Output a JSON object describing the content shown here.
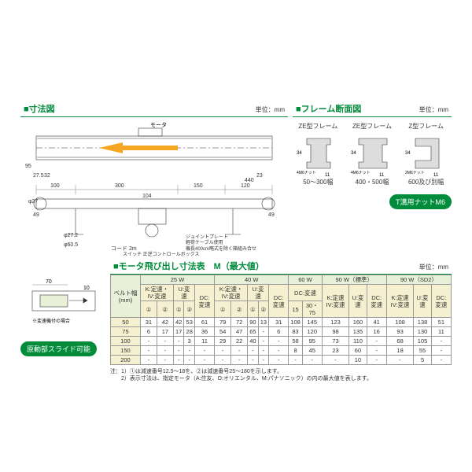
{
  "colors": {
    "green": "#008c3a",
    "light_green_bg": "#e8f0d8",
    "cream_bg": "#f5f0d0",
    "orange": "#f5a623",
    "line": "#333333",
    "dim_line": "#666666"
  },
  "dimension_section": {
    "title": "■寸法図",
    "unit": "単位：mm",
    "dims": {
      "d_100": "100",
      "d_300": "300",
      "d_150": "150",
      "d_120": "120",
      "d_104": "104",
      "d_440": "440",
      "d_23": "23",
      "d_275": "27.5",
      "d_32": "32",
      "d_phi27": "φ27",
      "d_49_l": "49",
      "d_49_r": "49",
      "d_phi272": "φ27.2",
      "d_phi605": "φ60.5",
      "d_95": "95",
      "d_cord": "コード 2m",
      "motor": "モータ",
      "note_joint": "ジョイントプレート",
      "note_roller": "軽荷ケーブル使用",
      "note_switch": "スイッチ 正逆コントロールボックス",
      "note_len": "機長400cm略式を除く箱組み合せ"
    }
  },
  "cross_section": {
    "title": "■フレーム断面図",
    "unit": "単位：mm",
    "frames": [
      {
        "label": "ZE型フレーム",
        "width_label": "50～300幅",
        "nut": "4M6ナット",
        "h": "34",
        "w": "11"
      },
      {
        "label": "ZE型フレーム",
        "width_label": "400・500幅",
        "nut": "4M6ナット",
        "h": "34",
        "w": "11"
      },
      {
        "label": "Z型フレーム",
        "width_label": "600及び別幅",
        "nut": "2M6ナット",
        "h": "34",
        "w": "11"
      }
    ],
    "button": "T溝用ナットM6"
  },
  "slide_section": {
    "button": "原動部スライド可能",
    "dims": {
      "d_70": "70",
      "d_10": "10"
    },
    "note": "※変速機付の場合"
  },
  "table_section": {
    "title": "■モータ飛び出し寸法表　M（最大値）",
    "unit": "単位：mm",
    "group_headers": [
      "25 W",
      "40 W",
      "60 W",
      "90 W（標準）",
      "90 W（SD2）"
    ],
    "sub_headers_25": [
      "K:定速・IV:変速",
      "U:変速",
      "DC:変速"
    ],
    "sub_headers_40": [
      "K:定速・IV:変速",
      "U:変速",
      "DC:変速"
    ],
    "sub_headers_60": [
      "DC:変速"
    ],
    "sub_headers_90a": [
      "K:定速 IV:変速",
      "U:変速",
      "DC:変速"
    ],
    "sub_headers_90b": [
      "K:定速 IV:変速",
      "U:変速",
      "DC:変速"
    ],
    "circled": [
      "①",
      "②",
      "①",
      "②",
      "①",
      "②",
      "①",
      "②",
      "15",
      "30・75"
    ],
    "belt_header": "ベルト幅 (mm)",
    "rows": [
      {
        "w": "50",
        "c": [
          "31",
          "42",
          "42",
          "53",
          "61",
          "79",
          "72",
          "90",
          "13",
          "31",
          "108",
          "145",
          "123",
          "160",
          "41",
          "108",
          "138",
          "51"
        ]
      },
      {
        "w": "75",
        "c": [
          "6",
          "17",
          "17",
          "28",
          "36",
          "54",
          "47",
          "65",
          "-",
          "6",
          "83",
          "120",
          "98",
          "135",
          "16",
          "93",
          "130",
          "11"
        ]
      },
      {
        "w": "100",
        "c": [
          "-",
          "-",
          "-",
          "3",
          "11",
          "29",
          "22",
          "40",
          "-",
          "-",
          "58",
          "95",
          "73",
          "110",
          "-",
          "68",
          "105",
          "-"
        ]
      },
      {
        "w": "150",
        "c": [
          "-",
          "-",
          "-",
          "-",
          "-",
          "-",
          "-",
          "-",
          "-",
          "-",
          "8",
          "45",
          "23",
          "60",
          "-",
          "18",
          "55",
          "-"
        ]
      },
      {
        "w": "200",
        "c": [
          "-",
          "-",
          "-",
          "-",
          "-",
          "-",
          "-",
          "-",
          "-",
          "-",
          "-",
          "-",
          "-",
          "10",
          "-",
          "-",
          "5",
          "-"
        ]
      }
    ],
    "notes": [
      "注：1）①は減速番号12.5～18を、②は減速番号25～180を示します。",
      "　　2）表示寸法は、指定モータ（A:住友、O:オリエンタル、M:パナソニック）の内の最大値を表します。"
    ]
  }
}
